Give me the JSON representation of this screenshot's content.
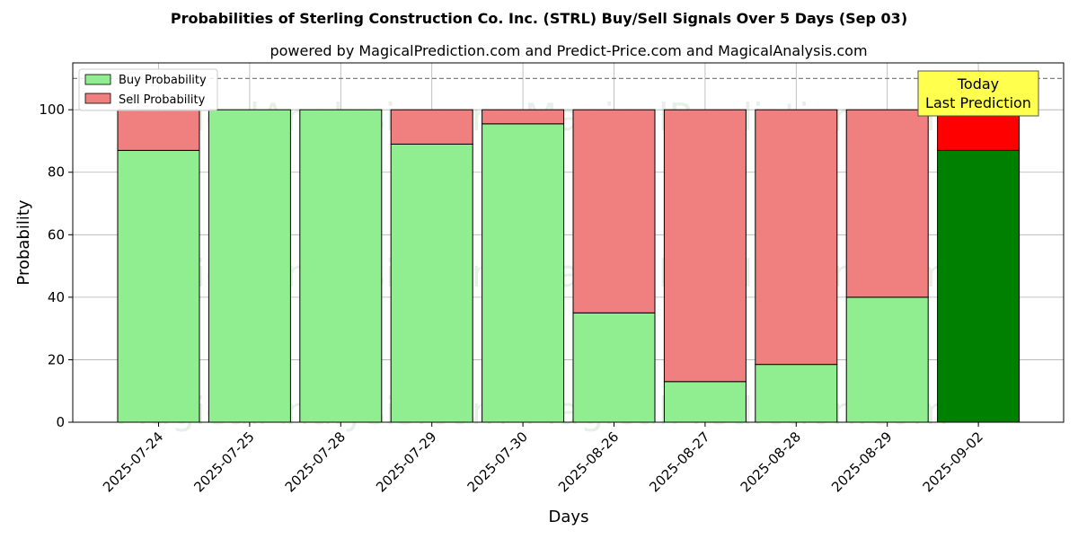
{
  "chart_data": {
    "type": "bar",
    "stacked": true,
    "title": "Probabilities of Sterling Construction Co. Inc. (STRL) Buy/Sell Signals Over 5 Days (Sep 03)",
    "subtitle": "powered by MagicalPrediction.com and Predict-Price.com and MagicalAnalysis.com",
    "xlabel": "Days",
    "ylabel": "Probability",
    "categories": [
      "2025-07-24",
      "2025-07-25",
      "2025-07-28",
      "2025-07-29",
      "2025-07-30",
      "2025-08-26",
      "2025-08-27",
      "2025-08-28",
      "2025-08-29",
      "2025-09-02"
    ],
    "series": [
      {
        "name": "Buy Probability",
        "values": [
          87,
          100,
          100,
          89,
          95.5,
          35,
          13,
          18.5,
          40,
          87
        ]
      },
      {
        "name": "Sell Probability",
        "values": [
          13,
          0,
          0,
          11,
          4.5,
          65,
          87,
          81.5,
          60,
          13
        ]
      }
    ],
    "ylim": [
      0,
      115
    ],
    "yticks": [
      0,
      20,
      40,
      60,
      80,
      100
    ],
    "reference_line": 110,
    "grid": true,
    "legend_position": "top-left",
    "annotation": {
      "line1": "Today",
      "line2": "Last Prediction"
    },
    "watermarks": [
      "MagicalAnalysis.com",
      "MagicalPrediction.com"
    ],
    "colors": {
      "buy": "#90ee90",
      "sell": "#f08080",
      "buy_highlight": "#008000",
      "sell_highlight": "#ff0000",
      "annotation_bg": "#ffff4d",
      "grid": "#b0b0b0",
      "reference_line": "#808080"
    }
  }
}
